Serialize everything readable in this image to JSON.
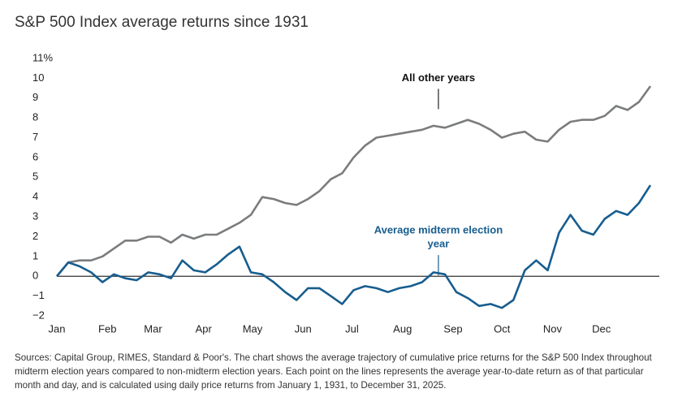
{
  "chart_data": {
    "type": "line",
    "title": "S&P 500 Index average returns since 1931",
    "x": [
      0,
      7,
      14,
      21,
      28,
      35,
      42,
      49,
      56,
      63,
      70,
      77,
      84,
      91,
      98,
      105,
      112,
      119,
      126,
      133,
      140,
      147,
      154,
      161,
      168,
      175,
      182,
      189,
      196,
      203,
      210,
      217,
      224,
      231,
      238,
      245,
      252,
      259,
      266,
      273,
      280,
      287,
      294,
      301,
      308,
      315,
      322,
      329,
      336,
      343,
      350,
      357,
      364
    ],
    "xlim": [
      0,
      365
    ],
    "xticks": [
      {
        "value": 0,
        "label": "Jan"
      },
      {
        "value": 31,
        "label": "Feb"
      },
      {
        "value": 59,
        "label": "Mar"
      },
      {
        "value": 90,
        "label": "Apr"
      },
      {
        "value": 120,
        "label": "May"
      },
      {
        "value": 151,
        "label": "Jun"
      },
      {
        "value": 181,
        "label": "Jul"
      },
      {
        "value": 212,
        "label": "Aug"
      },
      {
        "value": 243,
        "label": "Sep"
      },
      {
        "value": 273,
        "label": "Oct"
      },
      {
        "value": 304,
        "label": "Nov"
      },
      {
        "value": 334,
        "label": "Dec"
      }
    ],
    "ylim": [
      -2,
      11
    ],
    "yticks": [
      {
        "value": -2,
        "label": "−2"
      },
      {
        "value": -1,
        "label": "−1"
      },
      0,
      1,
      2,
      3,
      4,
      5,
      6,
      7,
      8,
      9,
      10,
      {
        "value": 11,
        "label": "11%"
      }
    ],
    "zero_line": true,
    "series": [
      {
        "name": "All other years",
        "color": "#7a7c7e",
        "values": [
          0,
          0.7,
          0.8,
          0.8,
          1.0,
          1.4,
          1.8,
          1.8,
          2.0,
          2.0,
          1.7,
          2.1,
          1.9,
          2.1,
          2.1,
          2.4,
          2.7,
          3.1,
          4.0,
          3.9,
          3.7,
          3.6,
          3.9,
          4.3,
          4.9,
          5.2,
          6.0,
          6.6,
          7.0,
          7.1,
          7.2,
          7.3,
          7.4,
          7.6,
          7.5,
          7.7,
          7.9,
          7.7,
          7.4,
          7.0,
          7.2,
          7.3,
          6.9,
          6.8,
          7.4,
          7.8,
          7.9,
          7.9,
          8.1,
          8.6,
          8.4,
          8.8,
          9.6
        ]
      },
      {
        "name": "Average midterm election year",
        "color": "#175d8f",
        "values": [
          0,
          0.7,
          0.5,
          0.2,
          -0.3,
          0.1,
          -0.1,
          -0.2,
          0.2,
          0.1,
          -0.1,
          0.8,
          0.3,
          0.2,
          0.6,
          1.1,
          1.5,
          0.2,
          0.1,
          -0.3,
          -0.8,
          -1.2,
          -0.6,
          -0.6,
          -1.0,
          -1.4,
          -0.7,
          -0.5,
          -0.6,
          -0.8,
          -0.6,
          -0.5,
          -0.3,
          0.2,
          0.1,
          -0.8,
          -1.1,
          -1.5,
          -1.4,
          -1.6,
          -1.2,
          0.3,
          0.8,
          0.3,
          2.2,
          3.1,
          2.3,
          2.1,
          2.9,
          3.3,
          3.1,
          3.7,
          4.6
        ]
      }
    ],
    "annotations": [
      {
        "lines": [
          "All other years"
        ],
        "x": 234,
        "y": 10
      },
      {
        "lines": [
          "Average midterm election",
          "year"
        ],
        "x": 234,
        "y": 2.3
      }
    ],
    "source": "Sources: Capital Group, RIMES, Standard & Poor's. The chart shows the average trajectory of cumulative price returns for the S&P 500 Index throughout midterm election years compared to non-midterm election years. Each point on the lines represents the average year-to-date return as of that particular month and day, and is calculated using daily price returns from January 1, 1931, to December 31, 2025."
  }
}
